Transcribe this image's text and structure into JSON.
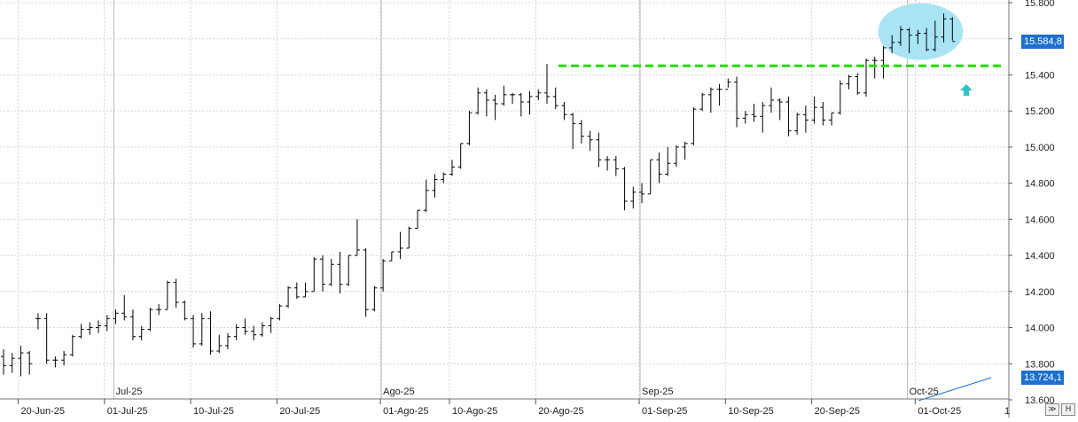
{
  "chart_data": {
    "type": "ohlc",
    "title": "",
    "xlabel": "",
    "ylabel": "",
    "ylim": [
      13600,
      15800
    ],
    "yticks": [
      "15.800",
      "15.600",
      "15.400",
      "15.200",
      "15.000",
      "14.800",
      "14.600",
      "14.400",
      "14.200",
      "14.000",
      "13.800",
      "13.600"
    ],
    "ytick_values": [
      15800,
      15600,
      15400,
      15200,
      15000,
      14800,
      14600,
      14400,
      14200,
      14000,
      13800,
      13600
    ],
    "months": [
      {
        "label": "Jul-25",
        "bar": 13
      },
      {
        "label": "Ago-25",
        "bar": 44
      },
      {
        "label": "Sep-25",
        "bar": 74
      },
      {
        "label": "Oct-25",
        "bar": 105
      }
    ],
    "dates": [
      {
        "label": "20-Jun-25",
        "bar": 2
      },
      {
        "label": "01-Jul-25",
        "bar": 12
      },
      {
        "label": "10-Jul-25",
        "bar": 22
      },
      {
        "label": "20-Jul-25",
        "bar": 32
      },
      {
        "label": "01-Ago-25",
        "bar": 44
      },
      {
        "label": "10-Ago-25",
        "bar": 52
      },
      {
        "label": "20-Ago-25",
        "bar": 62
      },
      {
        "label": "01-Sep-25",
        "bar": 74
      },
      {
        "label": "10-Sep-25",
        "bar": 84
      },
      {
        "label": "20-Sep-25",
        "bar": 94
      },
      {
        "label": "01-Oct-25",
        "bar": 106
      }
    ],
    "ohlc": [
      [
        13840,
        13880,
        13740,
        13790
      ],
      [
        13790,
        13860,
        13750,
        13830
      ],
      [
        13830,
        13900,
        13730,
        13860
      ],
      [
        13860,
        13870,
        13740,
        13800
      ],
      [
        14050,
        14080,
        13990,
        14050
      ],
      [
        14050,
        14080,
        13800,
        13820
      ],
      [
        13820,
        13840,
        13780,
        13820
      ],
      [
        13820,
        13870,
        13790,
        13850
      ],
      [
        13850,
        13960,
        13840,
        13950
      ],
      [
        13950,
        14020,
        13940,
        13990
      ],
      [
        13990,
        14030,
        13960,
        14000
      ],
      [
        14000,
        14040,
        13970,
        14010
      ],
      [
        14010,
        14070,
        13980,
        14050
      ],
      [
        14050,
        14100,
        14020,
        14080
      ],
      [
        14080,
        14180,
        14040,
        14060
      ],
      [
        14060,
        14100,
        13930,
        13950
      ],
      [
        13950,
        14010,
        13930,
        13990
      ],
      [
        13990,
        14110,
        13980,
        14100
      ],
      [
        14100,
        14130,
        14070,
        14100
      ],
      [
        14100,
        14260,
        14100,
        14250
      ],
      [
        14250,
        14270,
        14110,
        14140
      ],
      [
        14140,
        14150,
        14040,
        14050
      ],
      [
        14050,
        14070,
        13890,
        13910
      ],
      [
        13910,
        14080,
        13900,
        14050
      ],
      [
        14050,
        14090,
        13850,
        13870
      ],
      [
        13870,
        13960,
        13860,
        13900
      ],
      [
        13900,
        13970,
        13880,
        13950
      ],
      [
        13950,
        14020,
        13930,
        14000
      ],
      [
        14000,
        14050,
        13960,
        13980
      ],
      [
        13980,
        14010,
        13930,
        13960
      ],
      [
        13960,
        14030,
        13950,
        14010
      ],
      [
        14010,
        14060,
        13970,
        14050
      ],
      [
        14050,
        14130,
        14040,
        14120
      ],
      [
        14120,
        14230,
        14110,
        14220
      ],
      [
        14220,
        14250,
        14160,
        14170
      ],
      [
        14170,
        14250,
        14170,
        14200
      ],
      [
        14200,
        14390,
        14200,
        14380
      ],
      [
        14380,
        14400,
        14200,
        14240
      ],
      [
        14240,
        14380,
        14230,
        14350
      ],
      [
        14350,
        14420,
        14190,
        14240
      ],
      [
        14240,
        14400,
        14230,
        14400
      ],
      [
        14400,
        14600,
        14400,
        14430
      ],
      [
        14430,
        14440,
        14060,
        14100
      ],
      [
        14100,
        14230,
        14090,
        14220
      ],
      [
        14220,
        14380,
        14200,
        14370
      ],
      [
        14370,
        14420,
        14370,
        14420
      ],
      [
        14420,
        14530,
        14380,
        14440
      ],
      [
        14440,
        14560,
        14440,
        14550
      ],
      [
        14550,
        14650,
        14550,
        14650
      ],
      [
        14650,
        14820,
        14640,
        14760
      ],
      [
        14760,
        14850,
        14720,
        14820
      ],
      [
        14820,
        14860,
        14800,
        14850
      ],
      [
        14850,
        14930,
        14840,
        14890
      ],
      [
        14890,
        15020,
        14880,
        15020
      ],
      [
        15020,
        15200,
        15010,
        15190
      ],
      [
        15190,
        15330,
        15180,
        15300
      ],
      [
        15300,
        15320,
        15170,
        15260
      ],
      [
        15260,
        15290,
        15150,
        15240
      ],
      [
        15240,
        15340,
        15230,
        15290
      ],
      [
        15290,
        15300,
        15240,
        15290
      ],
      [
        15290,
        15300,
        15170,
        15250
      ],
      [
        15250,
        15310,
        15180,
        15280
      ],
      [
        15280,
        15320,
        15260,
        15300
      ],
      [
        15300,
        15460,
        15240,
        15280
      ],
      [
        15280,
        15330,
        15210,
        15230
      ],
      [
        15230,
        15250,
        15150,
        15180
      ],
      [
        15180,
        15190,
        14990,
        15130
      ],
      [
        15130,
        15150,
        15020,
        15060
      ],
      [
        15060,
        15090,
        14980,
        15040
      ],
      [
        15040,
        15080,
        14890,
        14930
      ],
      [
        14930,
        14950,
        14870,
        14930
      ],
      [
        14930,
        14950,
        14840,
        14880
      ],
      [
        14880,
        14890,
        14650,
        14700
      ],
      [
        14700,
        14780,
        14660,
        14750
      ],
      [
        14750,
        14800,
        14690,
        14740
      ],
      [
        14740,
        14930,
        14740,
        14930
      ],
      [
        14930,
        14970,
        14800,
        14850
      ],
      [
        14850,
        15000,
        14840,
        14910
      ],
      [
        14910,
        15010,
        14890,
        15000
      ],
      [
        15000,
        15030,
        14930,
        15020
      ],
      [
        15020,
        15220,
        15010,
        15210
      ],
      [
        15210,
        15300,
        15200,
        15290
      ],
      [
        15290,
        15330,
        15190,
        15320
      ],
      [
        15320,
        15350,
        15230,
        15320
      ],
      [
        15320,
        15380,
        15330,
        15360
      ],
      [
        15360,
        15390,
        15110,
        15160
      ],
      [
        15160,
        15200,
        15130,
        15180
      ],
      [
        15180,
        15240,
        15140,
        15170
      ],
      [
        15170,
        15250,
        15080,
        15230
      ],
      [
        15230,
        15330,
        15190,
        15260
      ],
      [
        15260,
        15270,
        15150,
        15250
      ],
      [
        15250,
        15280,
        15060,
        15090
      ],
      [
        15090,
        15190,
        15070,
        15180
      ],
      [
        15180,
        15230,
        15080,
        15150
      ],
      [
        15150,
        15280,
        15130,
        15220
      ],
      [
        15220,
        15250,
        15120,
        15150
      ],
      [
        15150,
        15190,
        15120,
        15190
      ],
      [
        15190,
        15370,
        15180,
        15350
      ],
      [
        15350,
        15400,
        15320,
        15390
      ],
      [
        15390,
        15410,
        15290,
        15300
      ],
      [
        15300,
        15490,
        15280,
        15480
      ],
      [
        15480,
        15500,
        15380,
        15480
      ],
      [
        15480,
        15560,
        15380,
        15550
      ],
      [
        15550,
        15620,
        15520,
        15580
      ],
      [
        15580,
        15670,
        15560,
        15650
      ],
      [
        15650,
        15660,
        15520,
        15620
      ],
      [
        15620,
        15650,
        15570,
        15630
      ],
      [
        15630,
        15660,
        15530,
        15540
      ],
      [
        15540,
        15700,
        15530,
        15610
      ],
      [
        15610,
        15740,
        15580,
        15710
      ],
      [
        15710,
        15720,
        15590,
        15585
      ]
    ],
    "resistance_level": 15450,
    "current_price": "15.584,8",
    "lower_price": "13.724,1",
    "x_axis_end_label": "1",
    "grid": true,
    "colors": {
      "bars": "#000000",
      "resistance": "#22dd00",
      "highlight": "#a8e4f4",
      "arrow": "#2ec4c4",
      "tag": "#1e6fd0",
      "trendline": "#1e6fd0"
    }
  }
}
